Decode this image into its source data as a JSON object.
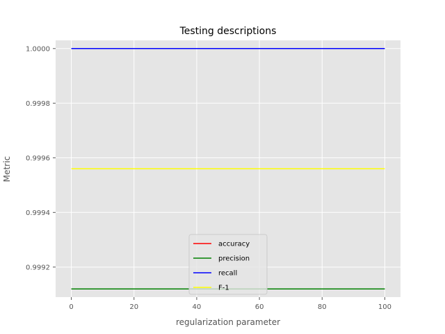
{
  "chart_data": {
    "type": "line",
    "title": "Testing descriptions",
    "xlabel": "regularization parameter",
    "ylabel": "Metric",
    "xlim": [
      -5,
      105
    ],
    "ylim": [
      0.99909,
      1.00003
    ],
    "xticks": [
      0,
      20,
      40,
      60,
      80,
      100
    ],
    "xtick_labels": [
      "0",
      "20",
      "40",
      "60",
      "80",
      "100"
    ],
    "yticks": [
      0.9992,
      0.9994,
      0.9996,
      0.9998,
      1.0
    ],
    "ytick_labels": [
      "0.9992",
      "0.9994",
      "0.9996",
      "0.9998",
      "1.0000"
    ],
    "grid": true,
    "legend_position": "lower center",
    "x": [
      0,
      100
    ],
    "series": [
      {
        "name": "accuracy",
        "color": "#ff0000",
        "values": [
          0.99912,
          0.99912
        ]
      },
      {
        "name": "precision",
        "color": "#008000",
        "values": [
          0.99912,
          0.99912
        ]
      },
      {
        "name": "recall",
        "color": "#0000ff",
        "values": [
          1.0,
          1.0
        ]
      },
      {
        "name": "F-1",
        "color": "#ffff00",
        "values": [
          0.99956,
          0.99956
        ]
      }
    ]
  }
}
